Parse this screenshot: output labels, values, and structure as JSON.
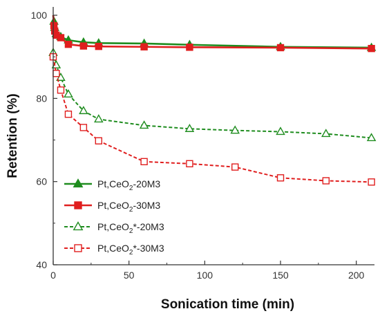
{
  "chart_data": {
    "type": "line",
    "title": "",
    "xlabel": "Sonication time (min)",
    "ylabel": "Retention (%)",
    "xlim": [
      0,
      212
    ],
    "ylim": [
      40,
      102
    ],
    "x_ticks": [
      0,
      50,
      100,
      150,
      200
    ],
    "y_ticks": [
      40,
      60,
      80,
      100
    ],
    "grid": false,
    "legend_position": "bottom-left",
    "series": [
      {
        "name": "Pt,CeO2-20M3",
        "name_parts": [
          "Pt,CeO",
          "2",
          "-20M3"
        ],
        "color": "#1e8c1e",
        "line_style": "solid",
        "marker": "triangle",
        "marker_fill": "filled",
        "x": [
          0,
          0.5,
          1,
          2,
          5,
          10,
          20,
          30,
          60,
          90,
          150,
          210
        ],
        "y": [
          100,
          98.5,
          97,
          95.5,
          94.8,
          94,
          93.5,
          93.3,
          93.2,
          92.9,
          92.4,
          92.2
        ]
      },
      {
        "name": "Pt,CeO2-30M3",
        "name_parts": [
          "Pt,CeO",
          "2",
          "-30M3"
        ],
        "color": "#e01e1e",
        "line_style": "solid",
        "marker": "square",
        "marker_fill": "filled",
        "x": [
          0,
          0.5,
          1,
          2,
          5,
          10,
          20,
          30,
          60,
          90,
          150,
          210
        ],
        "y": [
          100,
          97.5,
          96.2,
          95.2,
          94.6,
          93,
          92.6,
          92.5,
          92.4,
          92.3,
          92.2,
          92.0
        ]
      },
      {
        "name": "Pt,CeO2*-20M3",
        "name_parts": [
          "Pt,CeO",
          "2",
          "*-20M3"
        ],
        "color": "#1e8c1e",
        "line_style": "dashed",
        "marker": "triangle",
        "marker_fill": "open",
        "x": [
          0,
          2,
          5,
          10,
          20,
          30,
          60,
          90,
          120,
          150,
          180,
          210
        ],
        "y": [
          91,
          88,
          85,
          81,
          77,
          75,
          73.5,
          72.7,
          72.3,
          72,
          71.5,
          70.5
        ]
      },
      {
        "name": "Pt,CeO2*-30M3",
        "name_parts": [
          "Pt,CeO",
          "2",
          "*-30M3"
        ],
        "color": "#e01e1e",
        "line_style": "dashed",
        "marker": "square",
        "marker_fill": "open",
        "x": [
          0,
          2,
          5,
          10,
          20,
          30,
          60,
          90,
          120,
          150,
          180,
          210
        ],
        "y": [
          90,
          86,
          82,
          76.2,
          73,
          69.8,
          64.8,
          64.3,
          63.5,
          60.9,
          60.2,
          59.9
        ]
      }
    ]
  }
}
